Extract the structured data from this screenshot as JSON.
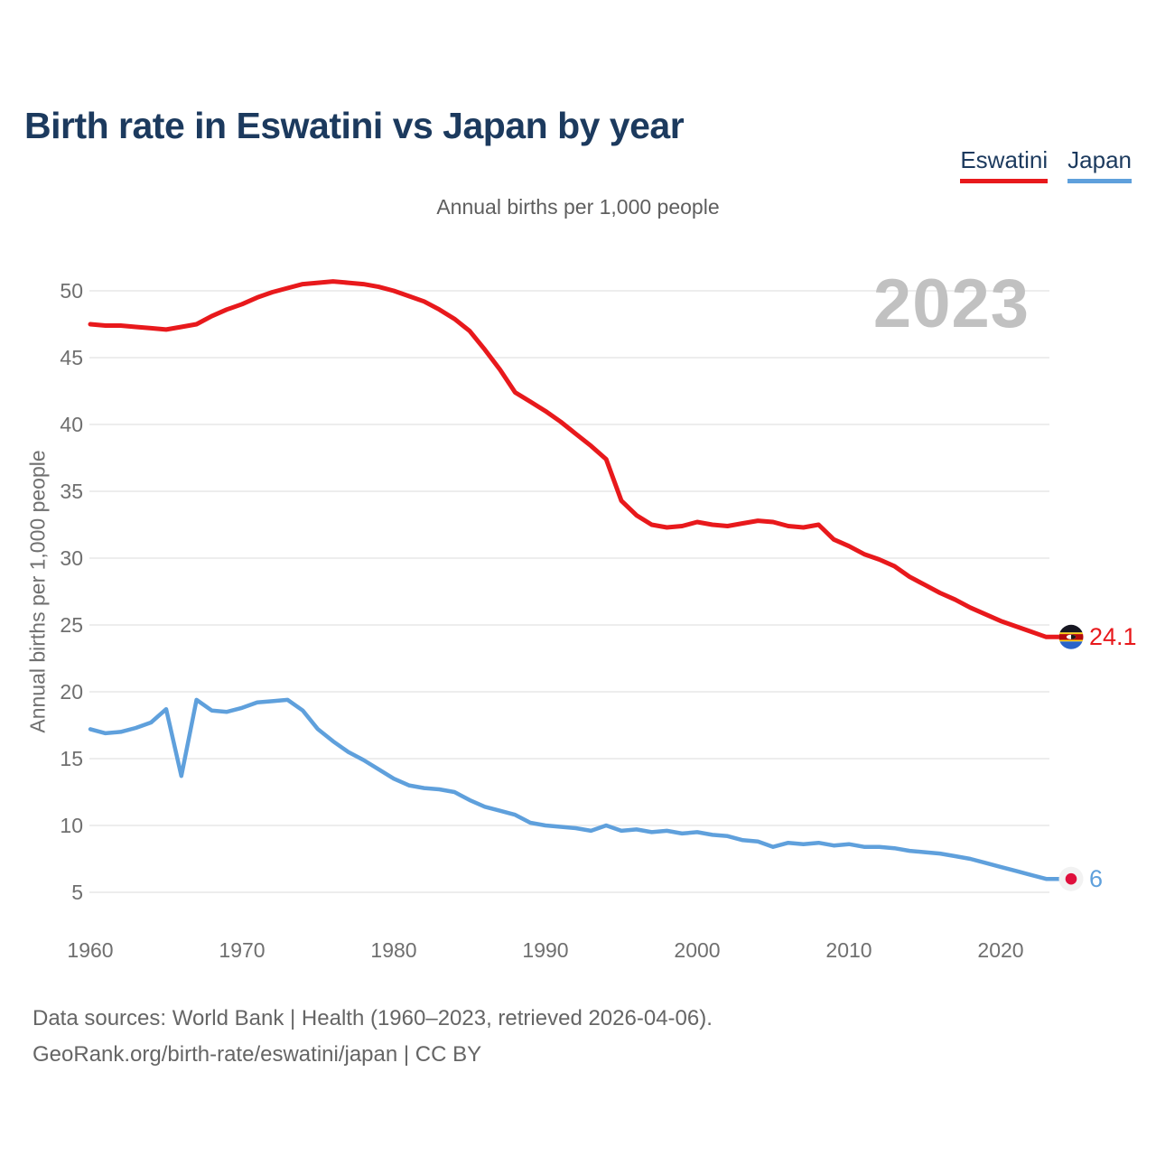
{
  "header": {
    "title": "Birth rate in Eswatini vs Japan by year"
  },
  "legend": {
    "position": "top-right",
    "items": [
      {
        "id": "eswatini",
        "label": "Eswatini",
        "color": "#e8191c"
      },
      {
        "id": "japan",
        "label": "Japan",
        "color": "#5fa0dc"
      }
    ]
  },
  "chart_data": {
    "type": "line",
    "title": "Birth rate in Eswatini vs Japan by year",
    "subtitle": "Annual births per 1,000 people",
    "y_axis_title": "Annual births per 1,000 people",
    "watermark": "2023",
    "grid": "horizontal",
    "legend_position": "top-right",
    "xticks": [
      1960,
      1970,
      1980,
      1990,
      2000,
      2010,
      2020
    ],
    "yticks": [
      5,
      10,
      15,
      20,
      25,
      30,
      35,
      40,
      45,
      50
    ],
    "ylim": [
      5,
      50
    ],
    "years": [
      1960,
      1961,
      1962,
      1963,
      1964,
      1965,
      1966,
      1967,
      1968,
      1969,
      1970,
      1971,
      1972,
      1973,
      1974,
      1975,
      1976,
      1977,
      1978,
      1979,
      1980,
      1981,
      1982,
      1983,
      1984,
      1985,
      1986,
      1987,
      1988,
      1989,
      1990,
      1991,
      1992,
      1993,
      1994,
      1995,
      1996,
      1997,
      1998,
      1999,
      2000,
      2001,
      2002,
      2003,
      2004,
      2005,
      2006,
      2007,
      2008,
      2009,
      2010,
      2011,
      2012,
      2013,
      2014,
      2015,
      2016,
      2017,
      2018,
      2019,
      2020,
      2021,
      2022,
      2023
    ],
    "series": [
      {
        "name": "Eswatini",
        "color": "#e8191c",
        "end_label": "24.1",
        "flag": "eswatini",
        "values": [
          47.5,
          47.4,
          47.4,
          47.3,
          47.2,
          47.1,
          47.3,
          47.5,
          48.1,
          48.6,
          49.0,
          49.5,
          49.9,
          50.2,
          50.5,
          50.6,
          50.7,
          50.6,
          50.5,
          50.3,
          50.0,
          49.6,
          49.2,
          48.6,
          47.9,
          47.0,
          45.6,
          44.1,
          42.4,
          41.7,
          41.0,
          40.2,
          39.3,
          38.4,
          37.4,
          34.3,
          33.2,
          32.5,
          32.3,
          32.4,
          32.7,
          32.5,
          32.4,
          32.6,
          32.8,
          32.7,
          32.4,
          32.3,
          32.5,
          31.4,
          30.9,
          30.3,
          29.9,
          29.4,
          28.6,
          28.0,
          27.4,
          26.9,
          26.3,
          25.8,
          25.3,
          24.9,
          24.5,
          24.1
        ]
      },
      {
        "name": "Japan",
        "color": "#5fa0dc",
        "end_label": "6",
        "flag": "japan",
        "values": [
          17.2,
          16.9,
          17.0,
          17.3,
          17.7,
          18.7,
          13.7,
          19.4,
          18.6,
          18.5,
          18.8,
          19.2,
          19.3,
          19.4,
          18.6,
          17.2,
          16.3,
          15.5,
          14.9,
          14.2,
          13.5,
          13.0,
          12.8,
          12.7,
          12.5,
          11.9,
          11.4,
          11.1,
          10.8,
          10.2,
          10.0,
          9.9,
          9.8,
          9.6,
          10.0,
          9.6,
          9.7,
          9.5,
          9.6,
          9.4,
          9.5,
          9.3,
          9.2,
          8.9,
          8.8,
          8.4,
          8.7,
          8.6,
          8.7,
          8.5,
          8.6,
          8.4,
          8.4,
          8.3,
          8.1,
          8.0,
          7.9,
          7.7,
          7.5,
          7.2,
          6.9,
          6.6,
          6.3,
          6.0
        ]
      }
    ]
  },
  "footer": {
    "line1": "Data sources: World Bank | Health (1960–2023, retrieved 2026-04-06).",
    "line2": "GeoRank.org/birth-rate/eswatini/japan | CC BY"
  }
}
